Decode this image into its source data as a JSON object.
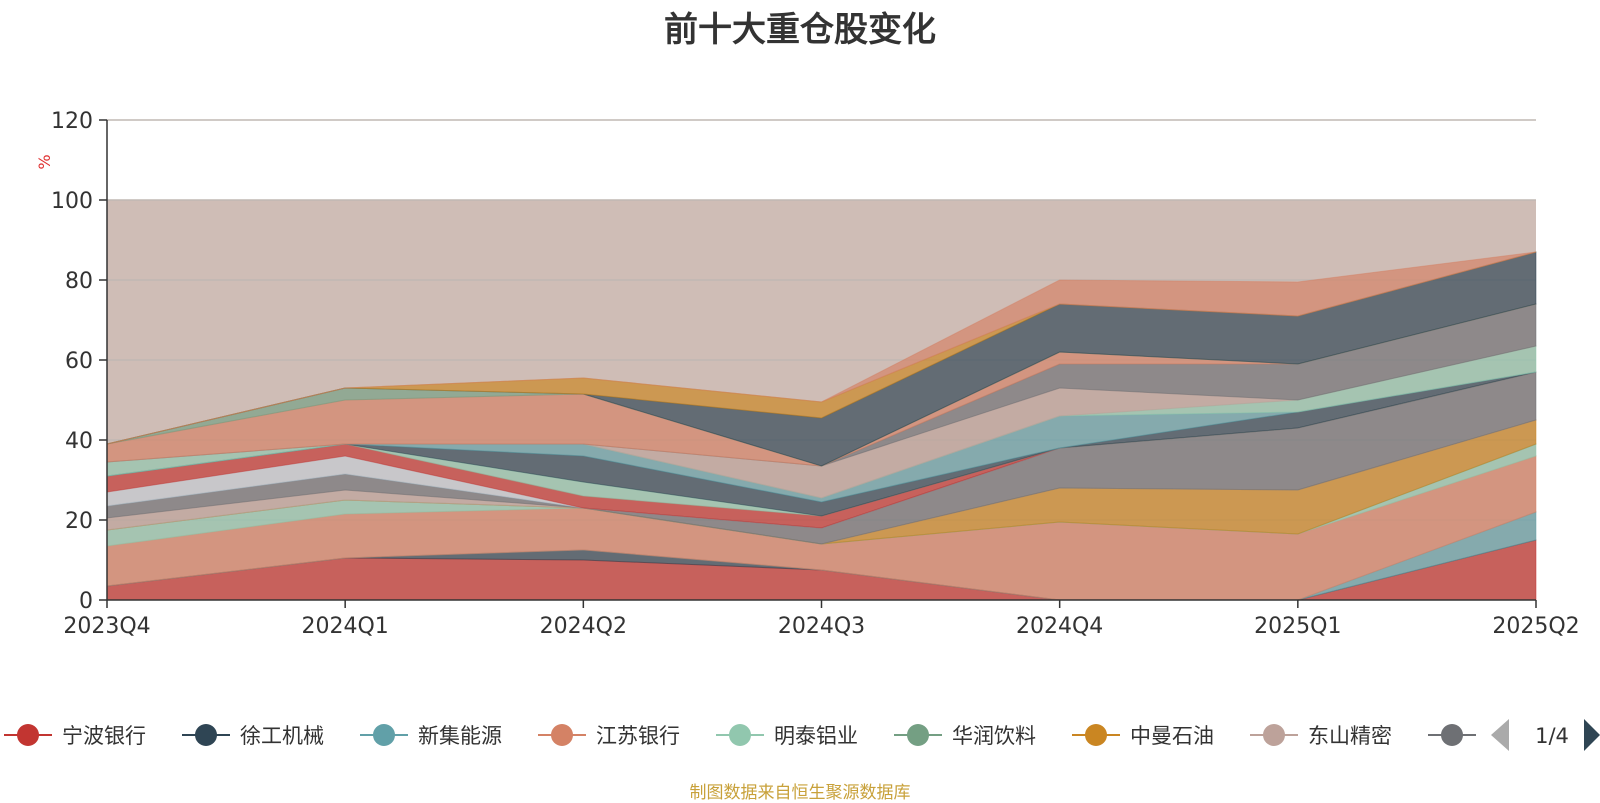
{
  "title": "前十大重仓股变化",
  "source_note": "制图数据来自恒生聚源数据库",
  "pager": {
    "label": "1/4"
  },
  "colors": {
    "background_band": "#cfbdb6",
    "prev_arrow": "#aaaaaa",
    "next_arrow": "#2f4554",
    "source_note": "#c8a13a"
  },
  "chart_data": {
    "type": "area",
    "stacked": true,
    "title": "前十大重仓股变化",
    "xlabel": "",
    "ylabel": "%",
    "x": [
      "2023Q4",
      "2024Q1",
      "2024Q2",
      "2024Q3",
      "2024Q4",
      "2025Q1",
      "2025Q2"
    ],
    "ylim": [
      0,
      120
    ],
    "yticks": [
      0,
      20,
      40,
      60,
      80,
      100,
      120
    ],
    "grid": true,
    "legend_position": "bottom",
    "series": [
      {
        "name": "宁波银行",
        "color": "#c23531",
        "values": [
          3.5,
          10.5,
          10.0,
          7.5,
          0.0,
          0.0,
          15.0
        ]
      },
      {
        "name": "徐工机械",
        "color": "#2f4554",
        "values": [
          0.0,
          0.0,
          2.5,
          0.0,
          0.0,
          0.0,
          0.0
        ]
      },
      {
        "name": "新集能源",
        "color": "#61a0a8",
        "values": [
          0.0,
          0.0,
          0.0,
          0.0,
          0.0,
          0.0,
          7.0
        ]
      },
      {
        "name": "江苏银行",
        "color": "#d48265",
        "values": [
          10.0,
          11.0,
          10.5,
          6.5,
          19.5,
          16.5,
          14.0
        ]
      },
      {
        "name": "明泰铝业",
        "color": "#91c7ae",
        "values": [
          4.0,
          3.5,
          0.0,
          0.0,
          0.0,
          0.0,
          3.0
        ]
      },
      {
        "name": "华润饮料",
        "color": "#749f83",
        "values": [
          0.0,
          0.0,
          0.0,
          0.0,
          0.0,
          0.0,
          0.0
        ]
      },
      {
        "name": "中曼石油",
        "color": "#ca8622",
        "values": [
          0.0,
          0.0,
          0.0,
          0.0,
          8.5,
          11.0,
          6.0
        ]
      },
      {
        "name": "东山精密",
        "color": "#bda29a",
        "values": [
          3.0,
          2.5,
          0.0,
          0.0,
          0.0,
          0.0,
          0.0
        ]
      },
      {
        "name": "",
        "color": "#6e7074",
        "values": [
          3.0,
          4.0,
          0.0,
          4.0,
          10.0,
          15.5,
          12.0
        ]
      },
      {
        "name": "",
        "color": "#546570",
        "values": [
          0.0,
          0.0,
          0.0,
          0.0,
          0.0,
          0.0,
          0.0
        ]
      },
      {
        "name": "",
        "color": "#c4ccd3",
        "values": [
          3.5,
          4.5,
          0.0,
          0.0,
          0.0,
          0.0,
          0.0
        ]
      },
      {
        "name": "",
        "color": "#c23531",
        "values": [
          4.0,
          3.0,
          3.0,
          3.0,
          0.0,
          0.0,
          0.0
        ]
      },
      {
        "name": "",
        "color": "#91c7ae",
        "values": [
          0.0,
          0.0,
          3.5,
          0.0,
          0.0,
          0.0,
          0.0
        ]
      },
      {
        "name": "",
        "color": "#2f4554",
        "values": [
          0.0,
          0.0,
          6.5,
          3.5,
          0.0,
          4.0,
          0.0
        ]
      },
      {
        "name": "",
        "color": "#61a0a8",
        "values": [
          0.0,
          0.0,
          3.0,
          1.0,
          8.0,
          0.0,
          0.0
        ]
      },
      {
        "name": "",
        "color": "#91c7ae",
        "values": [
          3.5,
          0.0,
          0.0,
          0.0,
          0.0,
          3.0,
          6.5
        ]
      },
      {
        "name": "",
        "color": "#bda29a",
        "values": [
          0.0,
          0.0,
          0.0,
          8.0,
          7.0,
          0.0,
          0.0
        ]
      },
      {
        "name": "",
        "color": "#6e7074",
        "values": [
          0.0,
          0.0,
          0.0,
          0.0,
          6.0,
          9.0,
          10.5
        ]
      },
      {
        "name": "",
        "color": "#d48265",
        "values": [
          4.5,
          11.0,
          12.5,
          0.0,
          3.0,
          0.0,
          0.0
        ]
      },
      {
        "name": "",
        "color": "#749f83",
        "values": [
          0.0,
          3.0,
          0.0,
          0.0,
          0.0,
          0.0,
          0.0
        ]
      },
      {
        "name": "",
        "color": "#2f4554",
        "values": [
          0.0,
          0.0,
          0.0,
          12.0,
          12.0,
          12.0,
          13.0
        ]
      },
      {
        "name": "",
        "color": "#ca8622",
        "values": [
          0.0,
          0.0,
          4.0,
          4.0,
          0.0,
          0.0,
          0.0
        ]
      },
      {
        "name": "",
        "color": "#d48265",
        "values": [
          0.0,
          0.0,
          0.0,
          0.0,
          6.0,
          8.5,
          0.0
        ]
      }
    ]
  }
}
